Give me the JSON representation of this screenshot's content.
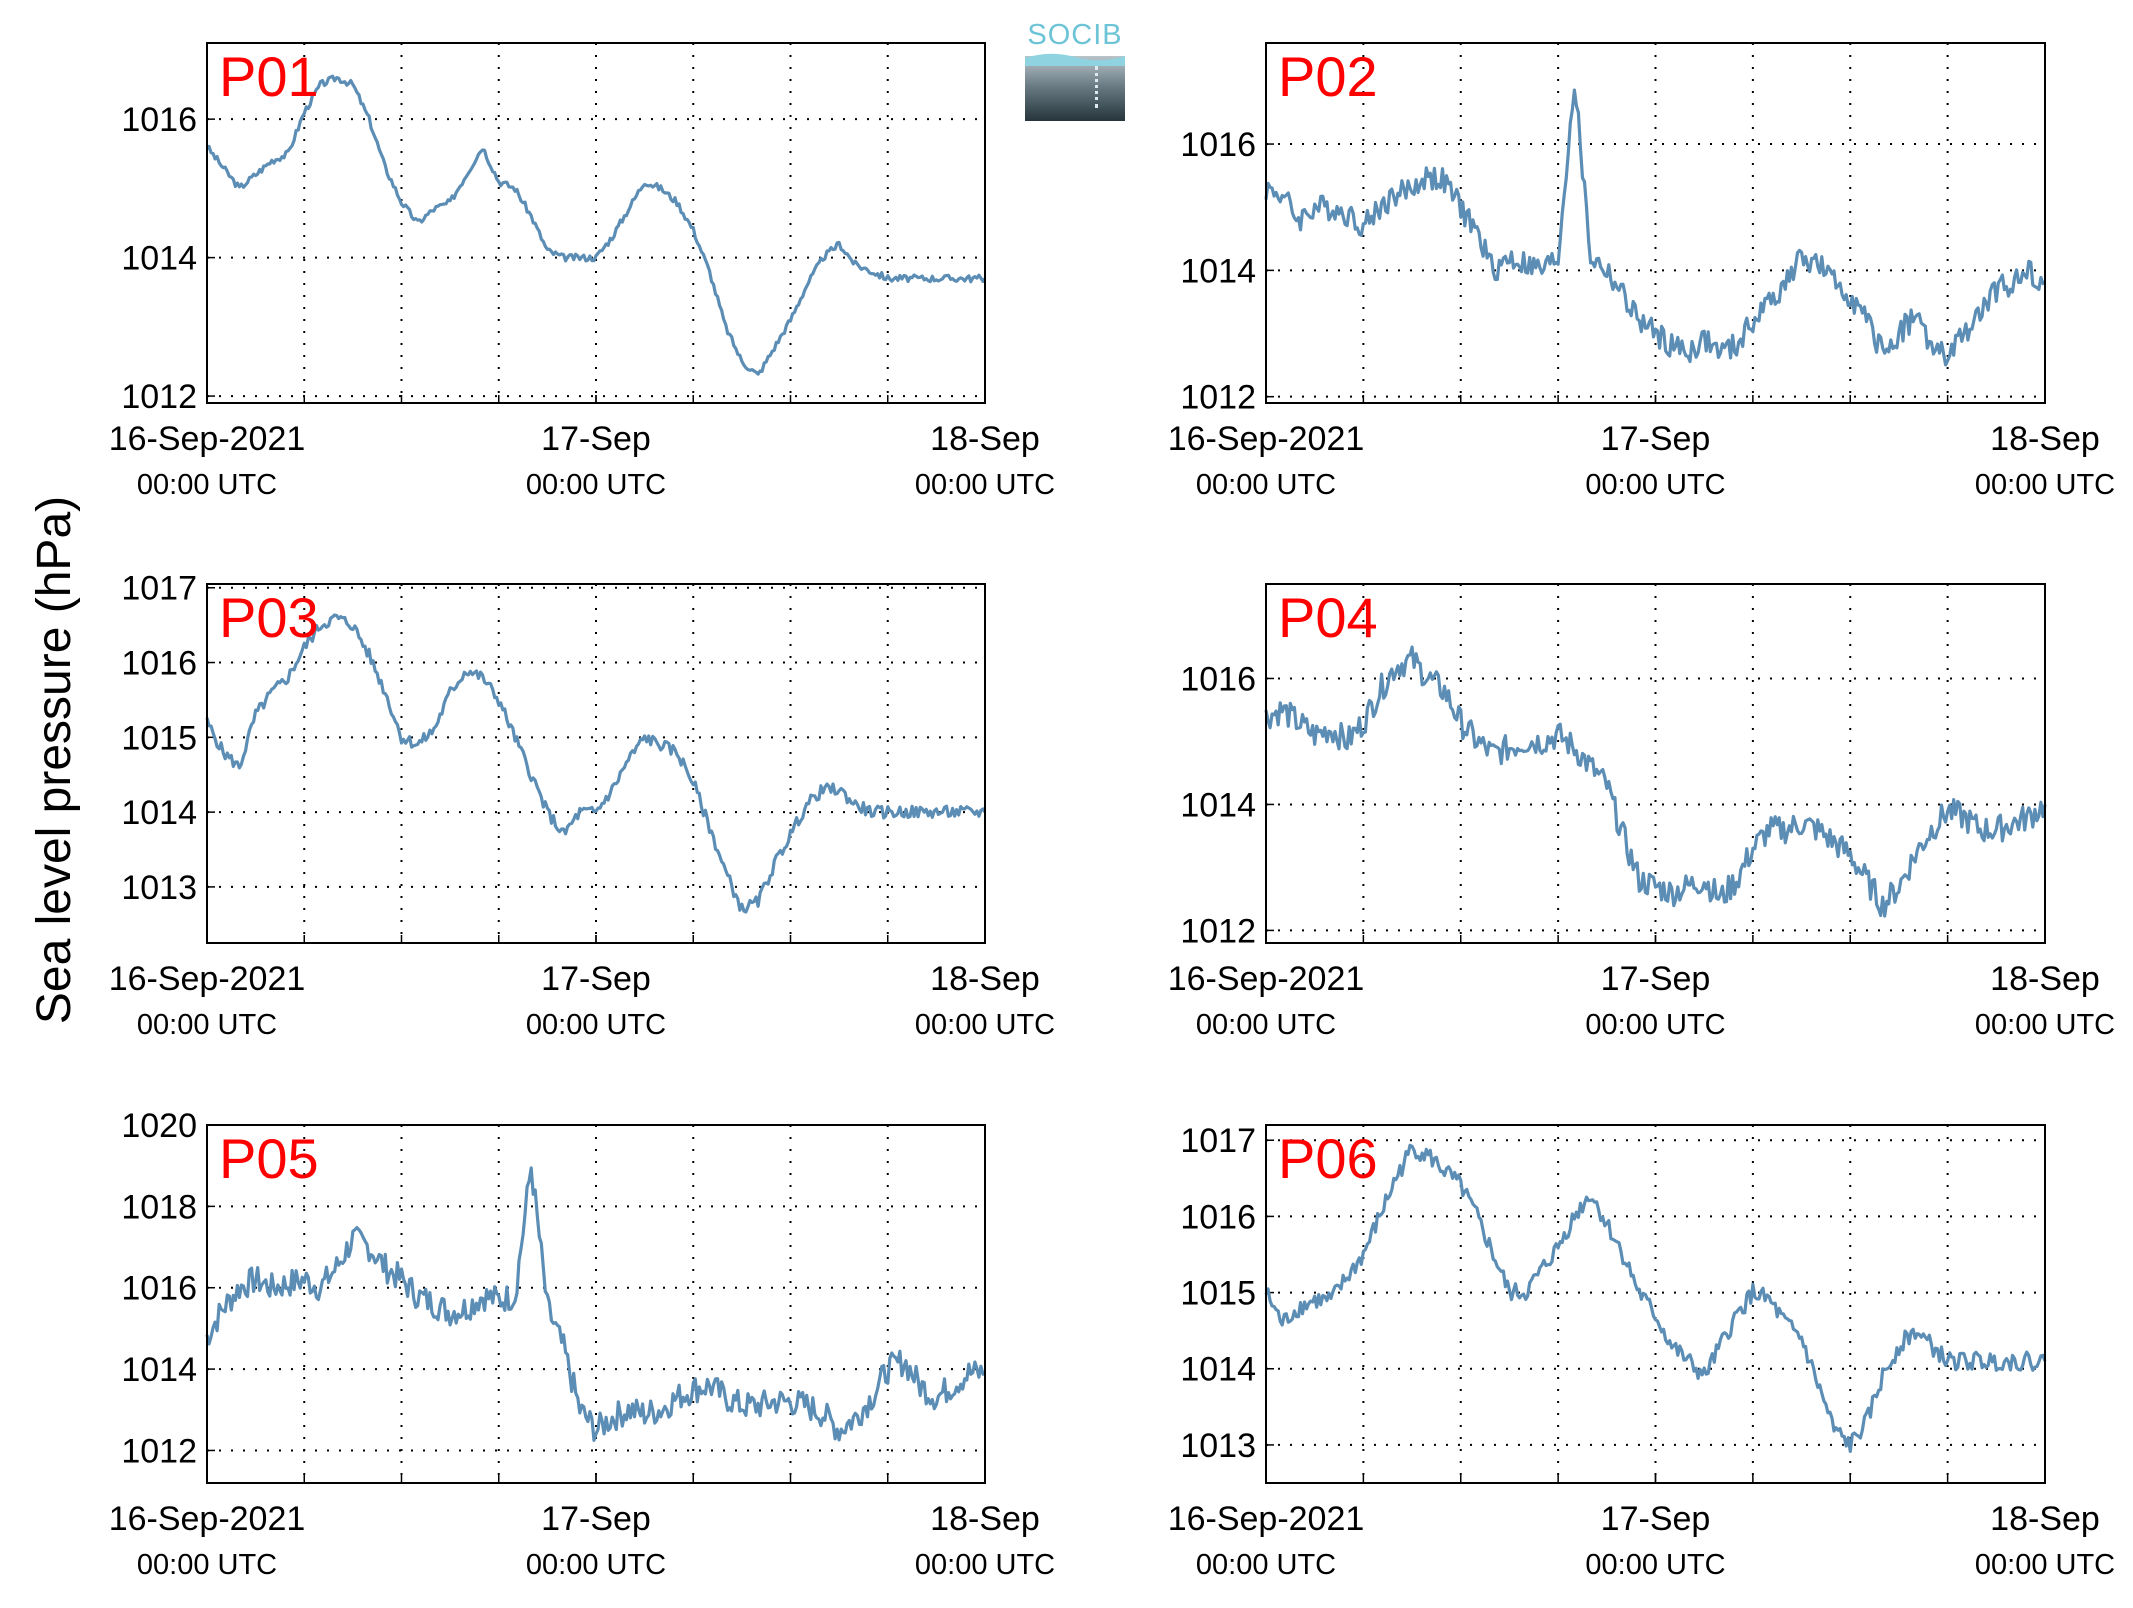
{
  "figure": {
    "ylabel": "Sea level pressure (hPa)",
    "logo_text": "SOCIB",
    "colors": {
      "line": "#5b8db5",
      "panel_label": "#ff0000",
      "grid": "#000000"
    }
  },
  "chart_data": [
    {
      "type": "line",
      "name": "P01",
      "xlabel": "",
      "x_range": [
        "2021-09-16T00:00",
        "2021-09-18T00:00"
      ],
      "ylim": [
        1011.9,
        1017.1
      ],
      "x_ticks": [
        {
          "date": "2021-09-16T00:00",
          "line1": "16-Sep-2021",
          "line2": "00:00 UTC"
        },
        {
          "date": "2021-09-17T00:00",
          "line1": "17-Sep",
          "line2": "00:00 UTC"
        },
        {
          "date": "2021-09-18T00:00",
          "line1": "18-Sep",
          "line2": "00:00 UTC"
        }
      ],
      "y_ticks": [
        1012,
        1014,
        1016
      ],
      "grid": true,
      "noise_amplitude": 0.05,
      "x": [
        "2021-09-16T00:00",
        "2021-09-16T01:00",
        "2021-09-16T02:00",
        "2021-09-16T03:00",
        "2021-09-16T04:00",
        "2021-09-16T05:00",
        "2021-09-16T06:00",
        "2021-09-16T07:00",
        "2021-09-16T08:00",
        "2021-09-16T09:00",
        "2021-09-16T10:00",
        "2021-09-16T11:00",
        "2021-09-16T12:00",
        "2021-09-16T13:00",
        "2021-09-16T14:00",
        "2021-09-16T15:00",
        "2021-09-16T16:00",
        "2021-09-16T17:00",
        "2021-09-16T18:00",
        "2021-09-16T19:00",
        "2021-09-16T20:00",
        "2021-09-16T21:00",
        "2021-09-16T22:00",
        "2021-09-16T23:00",
        "2021-09-17T00:00",
        "2021-09-17T01:00",
        "2021-09-17T02:00",
        "2021-09-17T03:00",
        "2021-09-17T04:00",
        "2021-09-17T05:00",
        "2021-09-17T06:00",
        "2021-09-17T07:00",
        "2021-09-17T08:00",
        "2021-09-17T09:00",
        "2021-09-17T10:00",
        "2021-09-17T11:00",
        "2021-09-17T12:00",
        "2021-09-17T13:00",
        "2021-09-17T14:00",
        "2021-09-17T15:00",
        "2021-09-17T16:00",
        "2021-09-17T17:00",
        "2021-09-17T18:00",
        "2021-09-17T19:00",
        "2021-09-17T20:00",
        "2021-09-17T21:00",
        "2021-09-17T22:00",
        "2021-09-17T23:00",
        "2021-09-18T00:00"
      ],
      "values": [
        1015.6,
        1015.3,
        1015.0,
        1015.2,
        1015.4,
        1015.5,
        1016.1,
        1016.5,
        1016.6,
        1016.5,
        1016.0,
        1015.3,
        1014.8,
        1014.5,
        1014.7,
        1014.8,
        1015.2,
        1015.6,
        1015.1,
        1015.0,
        1014.6,
        1014.1,
        1014.0,
        1014.0,
        1014.0,
        1014.3,
        1014.7,
        1015.1,
        1015.0,
        1014.8,
        1014.4,
        1013.8,
        1013.0,
        1012.5,
        1012.3,
        1012.7,
        1013.1,
        1013.6,
        1014.0,
        1014.2,
        1013.9,
        1013.8,
        1013.7,
        1013.7,
        1013.7,
        1013.7,
        1013.7,
        1013.7,
        1013.7
      ]
    },
    {
      "type": "line",
      "name": "P02",
      "xlabel": "",
      "x_range": [
        "2021-09-16T00:00",
        "2021-09-18T00:00"
      ],
      "ylim": [
        1011.9,
        1017.6
      ],
      "x_ticks": [
        {
          "date": "2021-09-16T00:00",
          "line1": "16-Sep-2021",
          "line2": "00:00 UTC"
        },
        {
          "date": "2021-09-17T00:00",
          "line1": "17-Sep",
          "line2": "00:00 UTC"
        },
        {
          "date": "2021-09-18T00:00",
          "line1": "18-Sep",
          "line2": "00:00 UTC"
        }
      ],
      "y_ticks": [
        1012,
        1014,
        1016
      ],
      "grid": true,
      "noise_amplitude": 0.2,
      "x": [
        "2021-09-16T00:00",
        "2021-09-16T01:00",
        "2021-09-16T02:00",
        "2021-09-16T03:00",
        "2021-09-16T04:00",
        "2021-09-16T05:00",
        "2021-09-16T06:00",
        "2021-09-16T07:00",
        "2021-09-16T08:00",
        "2021-09-16T09:00",
        "2021-09-16T10:00",
        "2021-09-16T11:00",
        "2021-09-16T12:00",
        "2021-09-16T13:00",
        "2021-09-16T14:00",
        "2021-09-16T15:00",
        "2021-09-16T16:00",
        "2021-09-16T17:00",
        "2021-09-16T18:00",
        "2021-09-16T19:00",
        "2021-09-16T20:00",
        "2021-09-16T21:00",
        "2021-09-16T22:00",
        "2021-09-16T23:00",
        "2021-09-17T00:00",
        "2021-09-17T01:00",
        "2021-09-17T02:00",
        "2021-09-17T03:00",
        "2021-09-17T04:00",
        "2021-09-17T05:00",
        "2021-09-17T06:00",
        "2021-09-17T07:00",
        "2021-09-17T08:00",
        "2021-09-17T09:00",
        "2021-09-17T10:00",
        "2021-09-17T11:00",
        "2021-09-17T12:00",
        "2021-09-17T13:00",
        "2021-09-17T14:00",
        "2021-09-17T15:00",
        "2021-09-17T16:00",
        "2021-09-17T17:00",
        "2021-09-17T18:00",
        "2021-09-17T19:00",
        "2021-09-17T20:00",
        "2021-09-17T21:00",
        "2021-09-17T22:00",
        "2021-09-17T23:00",
        "2021-09-18T00:00"
      ],
      "values": [
        1015.3,
        1015.2,
        1014.8,
        1015.0,
        1015.0,
        1014.9,
        1014.7,
        1015.0,
        1015.2,
        1015.3,
        1015.5,
        1015.4,
        1015.0,
        1014.6,
        1014.0,
        1014.2,
        1014.1,
        1014.0,
        1014.2,
        1017.0,
        1014.2,
        1014.0,
        1013.6,
        1013.2,
        1013.0,
        1012.8,
        1012.7,
        1012.9,
        1012.7,
        1012.8,
        1013.2,
        1013.5,
        1013.8,
        1014.2,
        1014.1,
        1013.8,
        1013.6,
        1013.2,
        1012.7,
        1013.0,
        1013.3,
        1012.8,
        1012.6,
        1013.0,
        1013.3,
        1013.7,
        1013.8,
        1014.0,
        1013.8
      ]
    },
    {
      "type": "line",
      "name": "P03",
      "xlabel": "",
      "x_range": [
        "2021-09-16T00:00",
        "2021-09-18T00:00"
      ],
      "ylim": [
        1012.25,
        1017.05
      ],
      "x_ticks": [
        {
          "date": "2021-09-16T00:00",
          "line1": "16-Sep-2021",
          "line2": "00:00 UTC"
        },
        {
          "date": "2021-09-17T00:00",
          "line1": "17-Sep",
          "line2": "00:00 UTC"
        },
        {
          "date": "2021-09-18T00:00",
          "line1": "18-Sep",
          "line2": "00:00 UTC"
        }
      ],
      "y_ticks": [
        1013,
        1014,
        1015,
        1016,
        1017
      ],
      "grid": true,
      "noise_amplitude": 0.08,
      "x": [
        "2021-09-16T00:00",
        "2021-09-16T01:00",
        "2021-09-16T02:00",
        "2021-09-16T03:00",
        "2021-09-16T04:00",
        "2021-09-16T05:00",
        "2021-09-16T06:00",
        "2021-09-16T07:00",
        "2021-09-16T08:00",
        "2021-09-16T09:00",
        "2021-09-16T10:00",
        "2021-09-16T11:00",
        "2021-09-16T12:00",
        "2021-09-16T13:00",
        "2021-09-16T14:00",
        "2021-09-16T15:00",
        "2021-09-16T16:00",
        "2021-09-16T17:00",
        "2021-09-16T18:00",
        "2021-09-16T19:00",
        "2021-09-16T20:00",
        "2021-09-16T21:00",
        "2021-09-16T22:00",
        "2021-09-16T23:00",
        "2021-09-17T00:00",
        "2021-09-17T01:00",
        "2021-09-17T02:00",
        "2021-09-17T03:00",
        "2021-09-17T04:00",
        "2021-09-17T05:00",
        "2021-09-17T06:00",
        "2021-09-17T07:00",
        "2021-09-17T08:00",
        "2021-09-17T09:00",
        "2021-09-17T10:00",
        "2021-09-17T11:00",
        "2021-09-17T12:00",
        "2021-09-17T13:00",
        "2021-09-17T14:00",
        "2021-09-17T15:00",
        "2021-09-17T16:00",
        "2021-09-17T17:00",
        "2021-09-17T18:00",
        "2021-09-17T19:00",
        "2021-09-17T20:00",
        "2021-09-17T21:00",
        "2021-09-17T22:00",
        "2021-09-17T23:00",
        "2021-09-18T00:00"
      ],
      "values": [
        1015.2,
        1014.8,
        1014.6,
        1015.3,
        1015.6,
        1015.8,
        1016.2,
        1016.5,
        1016.6,
        1016.5,
        1016.1,
        1015.6,
        1015.0,
        1014.9,
        1015.1,
        1015.6,
        1015.9,
        1015.8,
        1015.5,
        1015.0,
        1014.5,
        1014.0,
        1013.7,
        1014.0,
        1014.0,
        1014.3,
        1014.7,
        1015.0,
        1014.9,
        1014.8,
        1014.4,
        1013.8,
        1013.2,
        1012.7,
        1012.8,
        1013.3,
        1013.7,
        1014.1,
        1014.3,
        1014.3,
        1014.1,
        1014.0,
        1014.0,
        1014.0,
        1014.0,
        1014.0,
        1014.0,
        1014.0,
        1014.0
      ]
    },
    {
      "type": "line",
      "name": "P04",
      "xlabel": "",
      "x_range": [
        "2021-09-16T00:00",
        "2021-09-18T00:00"
      ],
      "ylim": [
        1011.8,
        1017.5
      ],
      "x_ticks": [
        {
          "date": "2021-09-16T00:00",
          "line1": "16-Sep-2021",
          "line2": "00:00 UTC"
        },
        {
          "date": "2021-09-17T00:00",
          "line1": "17-Sep",
          "line2": "00:00 UTC"
        },
        {
          "date": "2021-09-18T00:00",
          "line1": "18-Sep",
          "line2": "00:00 UTC"
        }
      ],
      "y_ticks": [
        1012,
        1014,
        1016
      ],
      "grid": true,
      "noise_amplitude": 0.22,
      "x": [
        "2021-09-16T00:00",
        "2021-09-16T01:00",
        "2021-09-16T02:00",
        "2021-09-16T03:00",
        "2021-09-16T04:00",
        "2021-09-16T05:00",
        "2021-09-16T06:00",
        "2021-09-16T07:00",
        "2021-09-16T08:00",
        "2021-09-16T09:00",
        "2021-09-16T10:00",
        "2021-09-16T11:00",
        "2021-09-16T12:00",
        "2021-09-16T13:00",
        "2021-09-16T14:00",
        "2021-09-16T15:00",
        "2021-09-16T16:00",
        "2021-09-16T17:00",
        "2021-09-16T18:00",
        "2021-09-16T19:00",
        "2021-09-16T20:00",
        "2021-09-16T21:00",
        "2021-09-16T22:00",
        "2021-09-16T23:00",
        "2021-09-17T00:00",
        "2021-09-17T01:00",
        "2021-09-17T02:00",
        "2021-09-17T03:00",
        "2021-09-17T04:00",
        "2021-09-17T05:00",
        "2021-09-17T06:00",
        "2021-09-17T07:00",
        "2021-09-17T08:00",
        "2021-09-17T09:00",
        "2021-09-17T10:00",
        "2021-09-17T11:00",
        "2021-09-17T12:00",
        "2021-09-17T13:00",
        "2021-09-17T14:00",
        "2021-09-17T15:00",
        "2021-09-17T16:00",
        "2021-09-17T17:00",
        "2021-09-17T18:00",
        "2021-09-17T19:00",
        "2021-09-17T20:00",
        "2021-09-17T21:00",
        "2021-09-17T22:00",
        "2021-09-17T23:00",
        "2021-09-18T00:00"
      ],
      "values": [
        1015.4,
        1015.5,
        1015.3,
        1015.1,
        1015.2,
        1015.0,
        1015.3,
        1015.8,
        1016.2,
        1016.3,
        1016.0,
        1015.8,
        1015.3,
        1015.0,
        1014.8,
        1014.9,
        1015.0,
        1015.0,
        1015.1,
        1014.9,
        1014.6,
        1014.3,
        1013.5,
        1012.8,
        1012.7,
        1012.6,
        1012.7,
        1012.8,
        1012.5,
        1012.8,
        1013.3,
        1013.6,
        1013.6,
        1013.7,
        1013.6,
        1013.4,
        1013.2,
        1012.8,
        1012.4,
        1012.7,
        1013.2,
        1013.6,
        1013.9,
        1013.8,
        1013.6,
        1013.6,
        1013.7,
        1013.8,
        1014.0
      ]
    },
    {
      "type": "line",
      "name": "P05",
      "xlabel": "",
      "x_range": [
        "2021-09-16T00:00",
        "2021-09-18T00:00"
      ],
      "ylim": [
        1011.2,
        1020.0
      ],
      "x_ticks": [
        {
          "date": "2021-09-16T00:00",
          "line1": "16-Sep-2021",
          "line2": "00:00 UTC"
        },
        {
          "date": "2021-09-17T00:00",
          "line1": "17-Sep",
          "line2": "00:00 UTC"
        },
        {
          "date": "2021-09-18T00:00",
          "line1": "18-Sep",
          "line2": "00:00 UTC"
        }
      ],
      "y_ticks": [
        1012,
        1014,
        1016,
        1018,
        1020
      ],
      "grid": true,
      "noise_amplitude": 0.35,
      "x": [
        "2021-09-16T00:00",
        "2021-09-16T01:00",
        "2021-09-16T02:00",
        "2021-09-16T03:00",
        "2021-09-16T04:00",
        "2021-09-16T05:00",
        "2021-09-16T06:00",
        "2021-09-16T07:00",
        "2021-09-16T08:00",
        "2021-09-16T09:00",
        "2021-09-16T10:00",
        "2021-09-16T11:00",
        "2021-09-16T12:00",
        "2021-09-16T13:00",
        "2021-09-16T14:00",
        "2021-09-16T15:00",
        "2021-09-16T16:00",
        "2021-09-16T17:00",
        "2021-09-16T18:00",
        "2021-09-16T19:00",
        "2021-09-16T20:00",
        "2021-09-16T21:00",
        "2021-09-16T22:00",
        "2021-09-16T23:00",
        "2021-09-17T00:00",
        "2021-09-17T01:00",
        "2021-09-17T02:00",
        "2021-09-17T03:00",
        "2021-09-17T04:00",
        "2021-09-17T05:00",
        "2021-09-17T06:00",
        "2021-09-17T07:00",
        "2021-09-17T08:00",
        "2021-09-17T09:00",
        "2021-09-17T10:00",
        "2021-09-17T11:00",
        "2021-09-17T12:00",
        "2021-09-17T13:00",
        "2021-09-17T14:00",
        "2021-09-17T15:00",
        "2021-09-17T16:00",
        "2021-09-17T17:00",
        "2021-09-17T18:00",
        "2021-09-17T19:00",
        "2021-09-17T20:00",
        "2021-09-17T21:00",
        "2021-09-17T22:00",
        "2021-09-17T23:00",
        "2021-09-18T00:00"
      ],
      "values": [
        1014.8,
        1015.5,
        1016.0,
        1016.2,
        1016.0,
        1016.1,
        1016.2,
        1016.0,
        1016.5,
        1017.2,
        1017.0,
        1016.5,
        1016.2,
        1015.8,
        1015.6,
        1015.4,
        1015.5,
        1015.8,
        1015.7,
        1015.8,
        1019.0,
        1015.5,
        1014.5,
        1013.0,
        1012.5,
        1012.8,
        1013.0,
        1012.9,
        1013.0,
        1013.3,
        1013.5,
        1013.6,
        1013.3,
        1013.1,
        1013.1,
        1013.2,
        1013.2,
        1013.1,
        1012.9,
        1012.5,
        1012.8,
        1013.3,
        1014.0,
        1014.2,
        1013.6,
        1013.3,
        1013.6,
        1013.9,
        1013.9
      ]
    },
    {
      "type": "line",
      "name": "P06",
      "xlabel": "",
      "x_range": [
        "2021-09-16T00:00",
        "2021-09-18T00:00"
      ],
      "ylim": [
        1012.5,
        1017.2
      ],
      "x_ticks": [
        {
          "date": "2021-09-16T00:00",
          "line1": "16-Sep-2021",
          "line2": "00:00 UTC"
        },
        {
          "date": "2021-09-17T00:00",
          "line1": "17-Sep",
          "line2": "00:00 UTC"
        },
        {
          "date": "2021-09-18T00:00",
          "line1": "18-Sep",
          "line2": "00:00 UTC"
        }
      ],
      "y_ticks": [
        1013,
        1014,
        1015,
        1016,
        1017
      ],
      "grid": true,
      "noise_amplitude": 0.12,
      "x": [
        "2021-09-16T00:00",
        "2021-09-16T01:00",
        "2021-09-16T02:00",
        "2021-09-16T03:00",
        "2021-09-16T04:00",
        "2021-09-16T05:00",
        "2021-09-16T06:00",
        "2021-09-16T07:00",
        "2021-09-16T08:00",
        "2021-09-16T09:00",
        "2021-09-16T10:00",
        "2021-09-16T11:00",
        "2021-09-16T12:00",
        "2021-09-16T13:00",
        "2021-09-16T14:00",
        "2021-09-16T15:00",
        "2021-09-16T16:00",
        "2021-09-16T17:00",
        "2021-09-16T18:00",
        "2021-09-16T19:00",
        "2021-09-16T20:00",
        "2021-09-16T21:00",
        "2021-09-16T22:00",
        "2021-09-16T23:00",
        "2021-09-17T00:00",
        "2021-09-17T01:00",
        "2021-09-17T02:00",
        "2021-09-17T03:00",
        "2021-09-17T04:00",
        "2021-09-17T05:00",
        "2021-09-17T06:00",
        "2021-09-17T07:00",
        "2021-09-17T08:00",
        "2021-09-17T09:00",
        "2021-09-17T10:00",
        "2021-09-17T11:00",
        "2021-09-17T12:00",
        "2021-09-17T13:00",
        "2021-09-17T14:00",
        "2021-09-17T15:00",
        "2021-09-17T16:00",
        "2021-09-17T17:00",
        "2021-09-17T18:00",
        "2021-09-17T19:00",
        "2021-09-17T20:00",
        "2021-09-17T21:00",
        "2021-09-17T22:00",
        "2021-09-17T23:00",
        "2021-09-18T00:00"
      ],
      "values": [
        1015.0,
        1014.6,
        1014.8,
        1014.9,
        1014.9,
        1015.2,
        1015.5,
        1016.0,
        1016.5,
        1016.9,
        1016.8,
        1016.6,
        1016.4,
        1016.0,
        1015.5,
        1015.0,
        1015.0,
        1015.3,
        1015.6,
        1016.0,
        1016.3,
        1015.9,
        1015.5,
        1015.0,
        1014.7,
        1014.3,
        1014.1,
        1013.9,
        1014.3,
        1014.7,
        1015.0,
        1014.9,
        1014.6,
        1014.4,
        1013.8,
        1013.2,
        1013.0,
        1013.3,
        1013.9,
        1014.3,
        1014.5,
        1014.3,
        1014.1,
        1014.1,
        1014.1,
        1014.1,
        1014.1,
        1014.1,
        1014.1
      ]
    }
  ]
}
